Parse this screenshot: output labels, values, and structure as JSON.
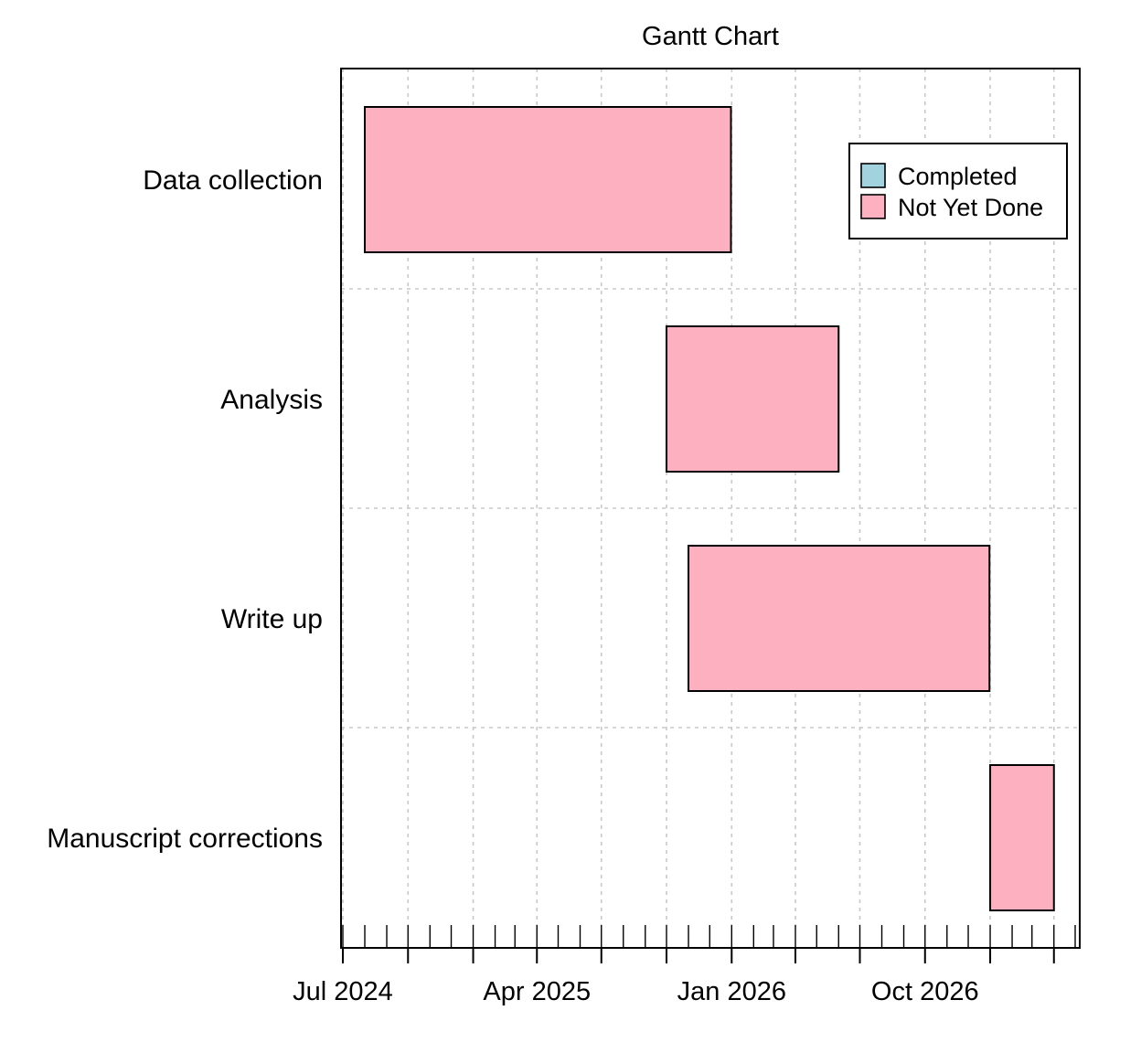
{
  "chart_data": {
    "type": "gantt",
    "title": "Gantt Chart",
    "tasks": [
      {
        "label": "Data collection",
        "start": "2024-08-01",
        "end": "2025-12-31",
        "status": "Not Yet Done"
      },
      {
        "label": "Analysis",
        "start": "2025-10-01",
        "end": "2026-06-01",
        "status": "Not Yet Done"
      },
      {
        "label": "Write up",
        "start": "2025-11-01",
        "end": "2026-12-31",
        "status": "Not Yet Done"
      },
      {
        "label": "Manuscript corrections",
        "start": "2027-01-01",
        "end": "2027-04-01",
        "status": "Not Yet Done"
      }
    ],
    "x_range": [
      "2024-07-01",
      "2027-05-01"
    ],
    "x_tick_labels": [
      {
        "date": "2024-07-01",
        "label": "Jul 2024"
      },
      {
        "date": "2025-04-01",
        "label": "Apr 2025"
      },
      {
        "date": "2026-01-01",
        "label": "Jan 2026"
      },
      {
        "date": "2026-10-01",
        "label": "Oct 2026"
      }
    ],
    "x_major_ticks": [
      "2024-07-01",
      "2024-10-01",
      "2025-01-01",
      "2025-04-01",
      "2025-07-01",
      "2025-10-01",
      "2026-01-01",
      "2026-04-01",
      "2026-07-01",
      "2026-10-01",
      "2027-01-01",
      "2027-04-01"
    ],
    "grid": true,
    "legend": {
      "position": "top-right",
      "entries": [
        {
          "label": "Completed",
          "color": "#a3d2df"
        },
        {
          "label": "Not Yet Done",
          "color": "#fdb0c0"
        }
      ]
    },
    "colors": {
      "Completed": "#a3d2df",
      "Not Yet Done": "#fdb0c0"
    }
  }
}
